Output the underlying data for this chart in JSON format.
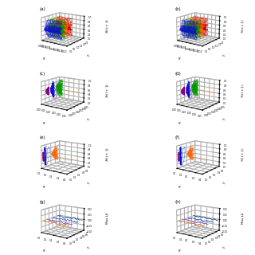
{
  "panels": [
    "(a)",
    "(b)",
    "(c)",
    "(d)",
    "(e)",
    "(f)",
    "(g)",
    "(h)"
  ],
  "colors_ab": [
    "#1111cc",
    "#009900",
    "#ff6600",
    "#cc0000"
  ],
  "colors_cd": [
    "#880088",
    "#1111cc",
    "#009900"
  ],
  "colors_ef_blobs": [
    "#880088",
    "#1111cc"
  ],
  "color_ef_fan": "#ff6600",
  "color_loop1": "#3366cc",
  "color_loop2": "#00bbbb",
  "color_tail": "#ff8800",
  "color_pink_loop": "#cc44aa",
  "line_colors_gh": [
    "#cc6600",
    "#8844cc",
    "#2244aa",
    "#004488"
  ],
  "elev": 15,
  "azim": -55
}
